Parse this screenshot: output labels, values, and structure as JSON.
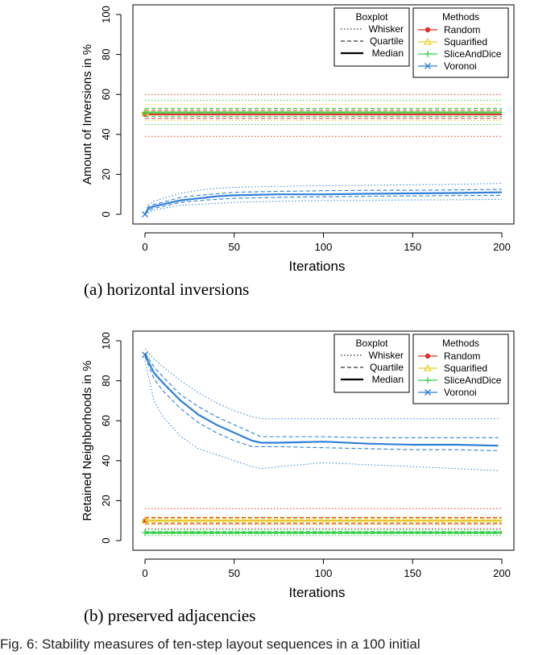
{
  "chart_data": [
    {
      "type": "line",
      "xlabel": "Iterations",
      "ylabel": "Amount of Inversions in %",
      "xlim": [
        0,
        200
      ],
      "ylim": [
        0,
        100
      ],
      "xticks": [
        0,
        50,
        100,
        150,
        200
      ],
      "yticks": [
        0,
        20,
        40,
        60,
        80,
        100
      ],
      "caption": "(a) horizontal inversions",
      "legend_boxplot": {
        "title": "Boxplot",
        "entries": [
          "Whisker",
          "Quartile",
          "Median"
        ],
        "placement": "top-right"
      },
      "legend_methods": {
        "title": "Methods",
        "entries": [
          "Random",
          "Squarified",
          "SliceAndDice",
          "Voronoi"
        ],
        "placement": "top-right"
      },
      "series": [
        {
          "name": "Random",
          "color": "#e0302a",
          "x": [
            0,
            200
          ],
          "median": [
            50,
            50
          ],
          "q1": [
            48,
            48
          ],
          "q3": [
            52,
            52
          ],
          "whisker_low": [
            39,
            39
          ],
          "whisker_high": [
            60,
            60
          ]
        },
        {
          "name": "Squarified",
          "color": "#e8d22a",
          "x": [
            0,
            200
          ],
          "median": [
            51,
            51
          ],
          "q1": [
            49,
            49
          ],
          "q3": [
            53,
            53
          ],
          "whisker_low": [
            47,
            47
          ],
          "whisker_high": [
            55,
            55
          ]
        },
        {
          "name": "SliceAndDice",
          "color": "#35d24a",
          "x": [
            0,
            200
          ],
          "median": [
            51,
            51
          ],
          "q1": [
            49,
            49
          ],
          "q3": [
            53,
            53
          ],
          "whisker_low": [
            45,
            45
          ],
          "whisker_high": [
            57,
            57
          ]
        },
        {
          "name": "Voronoi",
          "color": "#2f7fd8",
          "x": [
            0,
            2,
            5,
            10,
            20,
            30,
            40,
            50,
            75,
            100,
            125,
            150,
            175,
            200
          ],
          "median": [
            0,
            3,
            4,
            5,
            7,
            8,
            9,
            9.5,
            10,
            10,
            10.3,
            10.5,
            10.7,
            11
          ],
          "q1": [
            0,
            2,
            3,
            4,
            6,
            6.8,
            7.5,
            8,
            8.5,
            8.8,
            9,
            9.2,
            9.4,
            9.5
          ],
          "q3": [
            0,
            4,
            5,
            6,
            8.5,
            9.5,
            10.3,
            11,
            11.5,
            11.8,
            12,
            12,
            12.2,
            12.5
          ],
          "whisker_low": [
            0,
            1,
            2,
            3,
            4.5,
            5,
            5.5,
            6,
            6.5,
            7,
            7,
            7.2,
            7.3,
            7.5
          ],
          "whisker_high": [
            0,
            5,
            6.5,
            8,
            10.5,
            12,
            13,
            13.5,
            14,
            14.3,
            14.5,
            14.8,
            15,
            15.5
          ]
        }
      ]
    },
    {
      "type": "line",
      "xlabel": "Iterations",
      "ylabel": "Retained Neighborhoods in %",
      "xlim": [
        0,
        200
      ],
      "ylim": [
        0,
        100
      ],
      "xticks": [
        0,
        50,
        100,
        150,
        200
      ],
      "yticks": [
        0,
        20,
        40,
        60,
        80,
        100
      ],
      "caption": "(b) preserved adjacencies",
      "legend_boxplot": {
        "title": "Boxplot",
        "entries": [
          "Whisker",
          "Quartile",
          "Median"
        ],
        "placement": "top-right"
      },
      "legend_methods": {
        "title": "Methods",
        "entries": [
          "Random",
          "Squarified",
          "SliceAndDice",
          "Voronoi"
        ],
        "placement": "top-right"
      },
      "series": [
        {
          "name": "Random",
          "color": "#e0302a",
          "x": [
            0,
            200
          ],
          "median": [
            10,
            10
          ],
          "q1": [
            8.5,
            8.5
          ],
          "q3": [
            11.5,
            11.5
          ],
          "whisker_low": [
            6,
            6
          ],
          "whisker_high": [
            16,
            16
          ]
        },
        {
          "name": "Squarified",
          "color": "#e8d22a",
          "x": [
            0,
            200
          ],
          "median": [
            10,
            10
          ],
          "q1": [
            9,
            9
          ],
          "q3": [
            11,
            11
          ],
          "whisker_low": [
            8,
            8
          ],
          "whisker_high": [
            12,
            12
          ]
        },
        {
          "name": "SliceAndDice",
          "color": "#35d24a",
          "x": [
            0,
            200
          ],
          "median": [
            4,
            4
          ],
          "q1": [
            3.5,
            3.5
          ],
          "q3": [
            4.5,
            4.5
          ],
          "whisker_low": [
            2.5,
            2.5
          ],
          "whisker_high": [
            5.5,
            5.5
          ]
        },
        {
          "name": "Voronoi",
          "color": "#2f7fd8",
          "x": [
            0,
            5,
            10,
            20,
            30,
            40,
            50,
            60,
            65,
            75,
            100,
            125,
            150,
            175,
            198
          ],
          "median": [
            93,
            84,
            79,
            70,
            63,
            58,
            54,
            50,
            49,
            49,
            49.5,
            48.5,
            48,
            48,
            47.5
          ],
          "q1": [
            92,
            81,
            75,
            66,
            59,
            54,
            50,
            47,
            47,
            47,
            46.5,
            46,
            45.5,
            45.5,
            45
          ],
          "q3": [
            94,
            87,
            82,
            73,
            67,
            62,
            58,
            54,
            52,
            52,
            52,
            51.5,
            51.5,
            51.5,
            51.5
          ],
          "whisker_low": [
            90,
            70,
            62,
            52,
            46,
            43,
            40,
            37,
            36,
            37,
            39,
            38,
            37,
            36,
            35
          ],
          "whisker_high": [
            96,
            91,
            87,
            80,
            74,
            69,
            65,
            62,
            61,
            61,
            61,
            61,
            61,
            61,
            61
          ]
        }
      ]
    }
  ],
  "footer_text": "Fig. 6: Stability measures of ten-step layout sequences in a 100 initial"
}
